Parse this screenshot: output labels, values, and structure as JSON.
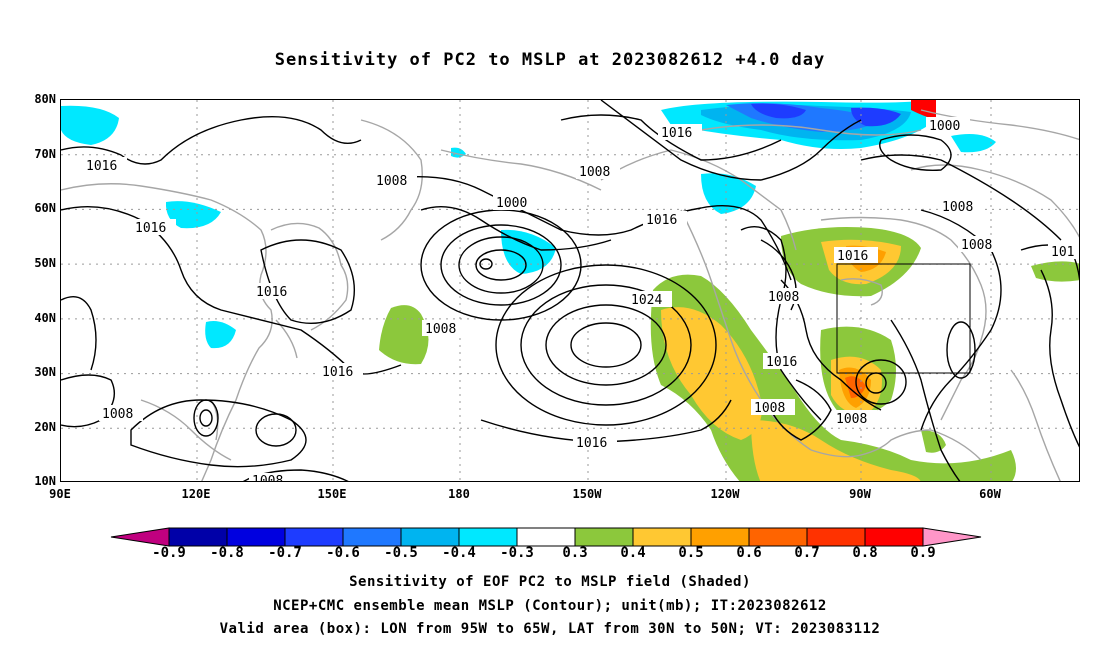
{
  "title": "Sensitivity of PC2 to MSLP at 2023082612 +4.0 day",
  "lat_ticks": [
    "80N",
    "70N",
    "60N",
    "50N",
    "40N",
    "30N",
    "20N",
    "10N"
  ],
  "lon_ticks": [
    "90E",
    "120E",
    "150E",
    "180",
    "150W",
    "120W",
    "90W",
    "60W"
  ],
  "contour_labels": [
    "1016",
    "1008",
    "1008",
    "1016",
    "1000",
    "1016",
    "1016",
    "1008",
    "1024",
    "1016",
    "1016",
    "1008",
    "1008",
    "1016",
    "1008",
    "1008",
    "1016",
    "1000",
    "1008",
    "1008",
    "101",
    "1016",
    "1008"
  ],
  "colorbar": {
    "labels": [
      "-0.9",
      "-0.8",
      "-0.7",
      "-0.6",
      "-0.5",
      "-0.4",
      "-0.3",
      "0.3",
      "0.4",
      "0.5",
      "0.6",
      "0.7",
      "0.8",
      "0.9"
    ],
    "colors": [
      "#c0007f",
      "#0000a8",
      "#0000e0",
      "#1e3cff",
      "#1f78ff",
      "#00b4f0",
      "#00e8ff",
      "#ffffff",
      "#8cc83c",
      "#ffc832",
      "#ffa000",
      "#ff6400",
      "#ff3200",
      "#ff0000",
      "#ff96c8"
    ]
  },
  "captions": [
    "Sensitivity of EOF PC2 to MSLP field (Shaded)",
    "NCEP+CMC ensemble mean MSLP (Contour); unit(mb); IT:2023082612",
    "Valid area (box): LON from 95W to 65W, LAT from 30N to 50N; VT: 2023083112"
  ]
}
